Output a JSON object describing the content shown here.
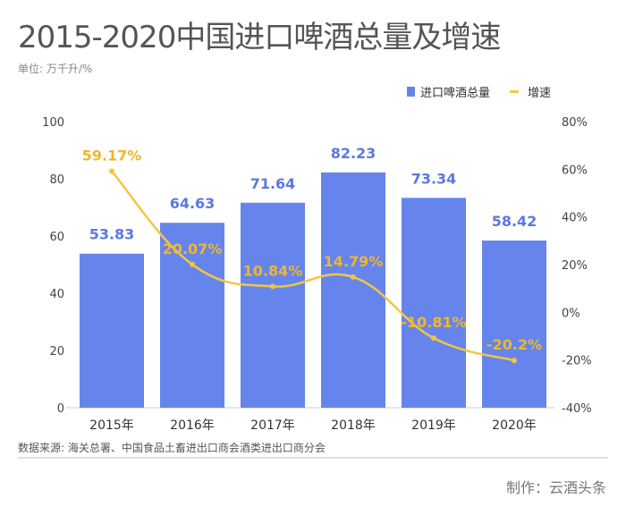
{
  "title": "2015-2020中国进口啤酒总量及增速",
  "unit": "单位: 万千升/%",
  "source": "数据来源: 海关总署、中国食品土畜进出口商会酒类进出口商分会",
  "credit": "制作：云酒头条",
  "colors": {
    "bar": "#6585ec",
    "bar_label": "#5b79e2",
    "line": "#f3c640",
    "line_label": "#f0b62a"
  },
  "chart_data": {
    "type": "bar+line",
    "categories": [
      "2015年",
      "2016年",
      "2017年",
      "2018年",
      "2019年",
      "2020年"
    ],
    "series": [
      {
        "name": "进口啤酒总量",
        "type": "bar",
        "axis": "left",
        "values": [
          53.83,
          64.63,
          71.64,
          82.23,
          73.34,
          58.42
        ],
        "labels": [
          "53.83",
          "64.63",
          "71.64",
          "82.23",
          "73.34",
          "58.42"
        ]
      },
      {
        "name": "增速",
        "type": "line",
        "axis": "right",
        "values": [
          59.17,
          20.07,
          10.84,
          14.79,
          -10.81,
          -20.2
        ],
        "labels": [
          "59.17%",
          "20.07%",
          "10.84%",
          "14.79%",
          "-10.81%",
          "-20.2%"
        ]
      }
    ],
    "y_left": {
      "range": [
        0,
        100
      ],
      "ticks": [
        "0",
        "20",
        "40",
        "60",
        "80",
        "100"
      ]
    },
    "y_right": {
      "range": [
        -40,
        80
      ],
      "ticks": [
        "-40%",
        "-20%",
        "0%",
        "20%",
        "40%",
        "60%",
        "80%"
      ]
    },
    "legend": {
      "position": "top-right",
      "items": [
        "进口啤酒总量",
        "增速"
      ]
    },
    "grid": false
  }
}
